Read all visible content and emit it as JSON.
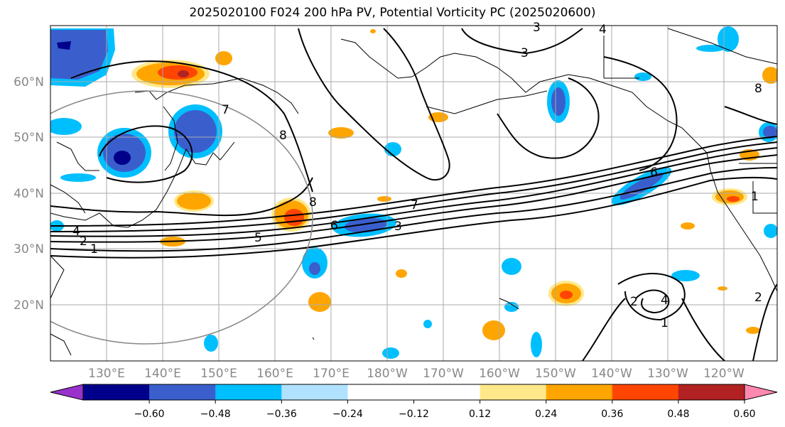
{
  "title": "2025020100 F024 200 hPa PV, Potential Vorticity PC (2025020600)",
  "map": {
    "lat_labels": [
      "60°N",
      "50°N",
      "40°N",
      "30°N",
      "20°N"
    ],
    "lon_labels": [
      "130°E",
      "140°E",
      "150°E",
      "160°E",
      "170°E",
      "180°W",
      "170°W",
      "160°W",
      "150°W",
      "140°W",
      "130°W",
      "120°W"
    ],
    "contour_labels": [
      "1",
      "2",
      "4",
      "5",
      "6",
      "7",
      "8",
      "3",
      "1",
      "2",
      "4",
      "6",
      "7",
      "8",
      "3",
      "4",
      "3",
      "1",
      "2",
      "8"
    ]
  },
  "colorbar": {
    "colors": [
      "#9932cc",
      "#00008b",
      "#3a5fcd",
      "#00bfff",
      "#b0e2ff",
      "#ffffff",
      "#ffffff",
      "#ffe88a",
      "#ffa500",
      "#ff4500",
      "#b22222",
      "#ff88b0"
    ],
    "tick_labels": [
      "−0.60",
      "−0.48",
      "−0.36",
      "−0.24",
      "−0.12",
      "0.12",
      "0.24",
      "0.36",
      "0.48",
      "0.60"
    ]
  }
}
